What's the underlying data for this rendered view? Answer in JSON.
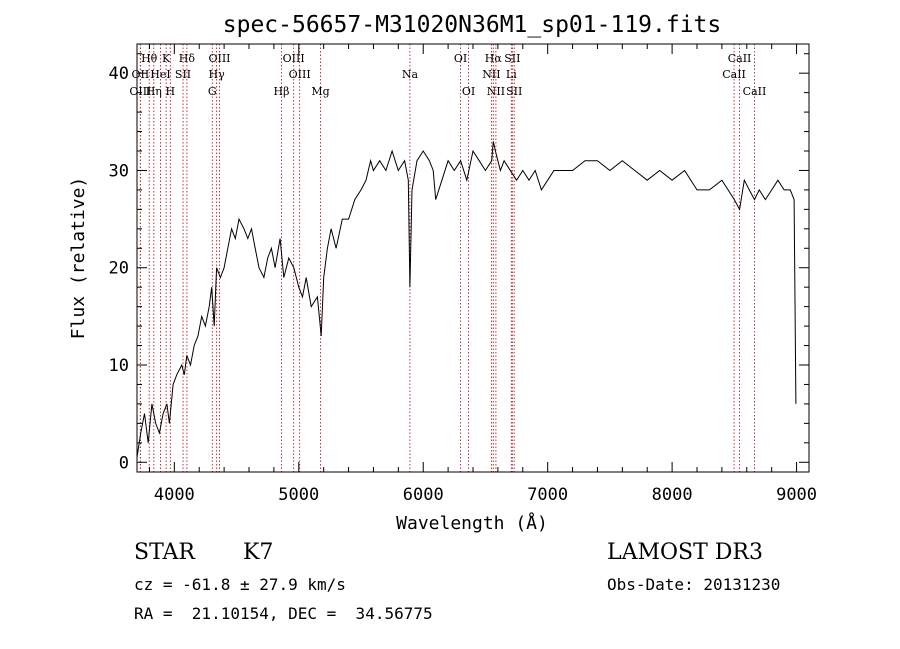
{
  "chart_data": {
    "type": "line",
    "title": "spec-56657-M31020N36M1_sp01-119.fits",
    "xlabel": "Wavelength (Å)",
    "ylabel": "Flux (relative)",
    "xlim": [
      3700,
      9100
    ],
    "ylim": [
      -1,
      43
    ],
    "xticks": [
      4000,
      5000,
      6000,
      7000,
      8000,
      9000
    ],
    "yticks": [
      0,
      10,
      20,
      30,
      40
    ],
    "grid": false,
    "series": [
      {
        "name": "spectrum",
        "x": [
          3700,
          3730,
          3760,
          3790,
          3820,
          3850,
          3880,
          3910,
          3940,
          3960,
          3990,
          4020,
          4060,
          4080,
          4100,
          4130,
          4160,
          4190,
          4220,
          4250,
          4280,
          4300,
          4320,
          4340,
          4370,
          4400,
          4430,
          4460,
          4490,
          4520,
          4560,
          4590,
          4620,
          4650,
          4680,
          4720,
          4750,
          4780,
          4810,
          4850,
          4880,
          4920,
          4960,
          5000,
          5030,
          5060,
          5100,
          5150,
          5180,
          5200,
          5230,
          5260,
          5300,
          5350,
          5400,
          5450,
          5500,
          5540,
          5577,
          5600,
          5650,
          5700,
          5750,
          5800,
          5850,
          5880,
          5893,
          5910,
          5950,
          6000,
          6050,
          6080,
          6100,
          6150,
          6200,
          6250,
          6300,
          6350,
          6400,
          6450,
          6500,
          6550,
          6563,
          6580,
          6620,
          6650,
          6700,
          6750,
          6800,
          6850,
          6900,
          6950,
          7000,
          7050,
          7100,
          7200,
          7300,
          7400,
          7500,
          7600,
          7700,
          7800,
          7900,
          8000,
          8100,
          8200,
          8300,
          8400,
          8450,
          8500,
          8542,
          8580,
          8620,
          8662,
          8700,
          8750,
          8800,
          8850,
          8900,
          8950,
          8980,
          8995
        ],
        "values": [
          0.5,
          3,
          5,
          2,
          6,
          4,
          3,
          5,
          6,
          4,
          8,
          9,
          10,
          9,
          11,
          10,
          12,
          13,
          15,
          14,
          16,
          18,
          14,
          20,
          19,
          20,
          22,
          24,
          23,
          25,
          24,
          23,
          24,
          22,
          20,
          19,
          21,
          22,
          20,
          23,
          19,
          21,
          20,
          18,
          17,
          19,
          16,
          17,
          13,
          19,
          22,
          24,
          22,
          25,
          25,
          27,
          28,
          29,
          31,
          30,
          31,
          30,
          32,
          30,
          31,
          29,
          18,
          28,
          31,
          32,
          31,
          30,
          27,
          29,
          31,
          30,
          31,
          29,
          32,
          31,
          30,
          31,
          33,
          32,
          30,
          31,
          30,
          29,
          30,
          29,
          30,
          28,
          29,
          30,
          30,
          30,
          31,
          31,
          30,
          31,
          30,
          29,
          30,
          29,
          30,
          28,
          28,
          29,
          28,
          27,
          26,
          29,
          28,
          27,
          28,
          27,
          28,
          29,
          28,
          28,
          27,
          6
        ]
      }
    ],
    "annotations": [
      {
        "label": "Hθ",
        "x": 3798,
        "row": 1
      },
      {
        "label": "OII",
        "x": 3727,
        "row": 2
      },
      {
        "label": "OIII",
        "x": 3727,
        "row": 3
      },
      {
        "label": "Hη",
        "x": 3835,
        "row": 3
      },
      {
        "label": "HeI",
        "x": 3889,
        "row": 2
      },
      {
        "label": "K",
        "x": 3934,
        "row": 1
      },
      {
        "label": "SII",
        "x": 4070,
        "row": 2
      },
      {
        "label": "H",
        "x": 3968,
        "row": 3
      },
      {
        "label": "Hδ",
        "x": 4101,
        "row": 1
      },
      {
        "label": "OIII",
        "x": 4363,
        "row": 1
      },
      {
        "label": "Hγ",
        "x": 4340,
        "row": 2
      },
      {
        "label": "G",
        "x": 4305,
        "row": 3
      },
      {
        "label": "Hβ",
        "x": 4861,
        "row": 3
      },
      {
        "label": "OIII",
        "x": 4959,
        "row": 1
      },
      {
        "label": "OIII",
        "x": 5007,
        "row": 2
      },
      {
        "label": "Mg",
        "x": 5175,
        "row": 3
      },
      {
        "label": "Na",
        "x": 5893,
        "row": 2
      },
      {
        "label": "OI",
        "x": 6300,
        "row": 1
      },
      {
        "label": "OI",
        "x": 6364,
        "row": 3
      },
      {
        "label": "Hα",
        "x": 6563,
        "row": 1
      },
      {
        "label": "NII",
        "x": 6548,
        "row": 2
      },
      {
        "label": "NII",
        "x": 6584,
        "row": 3
      },
      {
        "label": "SII",
        "x": 6716,
        "row": 1
      },
      {
        "label": "Li",
        "x": 6708,
        "row": 2
      },
      {
        "label": "SII",
        "x": 6731,
        "row": 3
      },
      {
        "label": "CaII",
        "x": 8542,
        "row": 1
      },
      {
        "label": "CaII",
        "x": 8498,
        "row": 2
      },
      {
        "label": "CaII",
        "x": 8662,
        "row": 3
      }
    ]
  },
  "info": {
    "object_type": "STAR",
    "subclass": "K7",
    "survey": "LAMOST DR3",
    "cz": "cz = -61.8 ± 27.9 km/s",
    "obs_date": "Obs-Date: 20131230",
    "coords": "RA =  21.10154, DEC =  34.56775"
  }
}
